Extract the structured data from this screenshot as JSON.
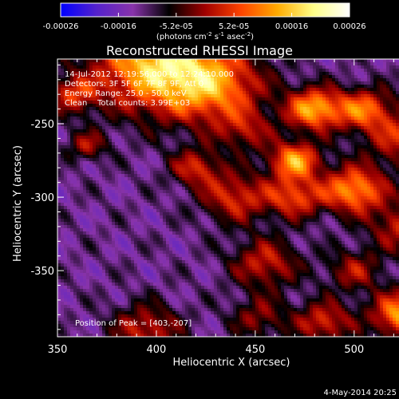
{
  "chart_data": {
    "type": "heatmap",
    "title": "Reconstructed RHESSI Image",
    "xlabel": "Heliocentric X (arcsec)",
    "ylabel": "Heliocentric Y (arcsec)",
    "xlim": [
      350,
      538
    ],
    "ylim": [
      -395,
      -206
    ],
    "x_ticks": [
      350,
      400,
      450,
      500
    ],
    "y_ticks": [
      -250,
      -300,
      -350
    ],
    "colorbar": {
      "unit_label": "(photons cm",
      "unit_exp1": "-2",
      "unit_mid": " s",
      "unit_exp2": "-1",
      "unit_mid2": " asec",
      "unit_exp3": "-2",
      "unit_close": ")",
      "range": [
        -0.00026,
        0.00026
      ],
      "ticks": [
        "-0.00026",
        "-0.00016",
        "-5.2e-05",
        "5.2e-05",
        "0.00016",
        "0.00026"
      ],
      "colormap": [
        "#0000ff",
        "#5522cc",
        "#8833aa",
        "#000000",
        "#a00000",
        "#ff4400",
        "#ffaa00",
        "#ffff88",
        "#ffffff"
      ]
    },
    "annotations": {
      "time_range": "14-Jul-2012 12:19:56.000 to 12:24:10.000",
      "detectors": "Detectors: 3F 5F 6F 7F 8F 9F, Att 0",
      "energy": "Energy Range: 25.0 - 50.0 keV",
      "method": "Clean",
      "counts": "Total counts: 3.99E+03",
      "peak": "Position of Peak = [403,-207]"
    },
    "peak": [
      403,
      -207
    ]
  },
  "footer": {
    "date": "4-May-2014 20:25"
  }
}
